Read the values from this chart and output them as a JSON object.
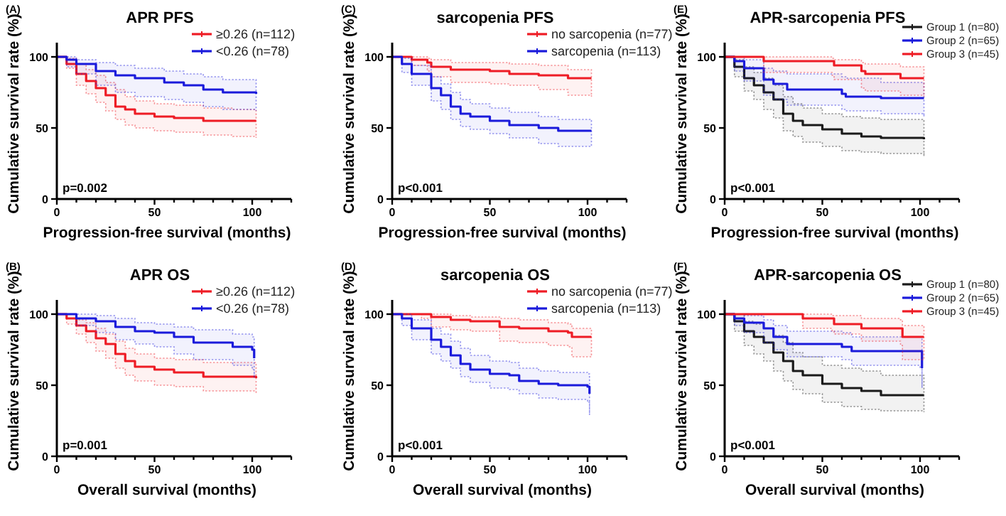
{
  "chart_data": [
    {
      "type": "step",
      "title": "APR PFS",
      "xlabel": "Progression-free survival (months)",
      "ylabel": "Cumulative survival rate (%)",
      "xlim": [
        0,
        120
      ],
      "ylim": [
        0,
        110
      ],
      "xticks": [
        0,
        {
          "value": 10,
          "label": null
        },
        {
          "value": 20,
          "label": null
        },
        {
          "value": 30,
          "label": null
        },
        {
          "value": 40,
          "label": null
        },
        50,
        {
          "value": 60,
          "label": null
        },
        {
          "value": 70,
          "label": null
        },
        {
          "value": 80,
          "label": null
        },
        {
          "value": 90,
          "label": null
        },
        100,
        {
          "value": 110,
          "label": null
        },
        {
          "value": 120,
          "label": null
        }
      ],
      "yticks": [
        0,
        50,
        100
      ],
      "legend": "top right",
      "annotations": [
        "(A)",
        "p=0.002"
      ],
      "series": [
        {
          "name": "≥0.26 (n=112)",
          "color": "#ee1c25",
          "x": [
            0,
            5,
            10,
            15,
            20,
            25,
            30,
            35,
            40,
            50,
            60,
            75,
            90,
            102
          ],
          "values": [
            100,
            95,
            88,
            83,
            78,
            73,
            65,
            63,
            60,
            58,
            57,
            55,
            55,
            55
          ],
          "lower": [
            100,
            92,
            80,
            74,
            68,
            62,
            56,
            52,
            50,
            48,
            47,
            45,
            44,
            43
          ],
          "upper": [
            100,
            99,
            95,
            91,
            87,
            82,
            77,
            72,
            69,
            67,
            66,
            64,
            63,
            63
          ]
        },
        {
          "name": "<0.26 (n=78)",
          "color": "#1a1adb",
          "x": [
            0,
            5,
            10,
            20,
            30,
            40,
            55,
            65,
            75,
            85,
            102
          ],
          "values": [
            100,
            98,
            95,
            90,
            87,
            85,
            82,
            80,
            77,
            75,
            74
          ],
          "lower": [
            100,
            93,
            88,
            80,
            75,
            72,
            70,
            68,
            65,
            63,
            62
          ],
          "upper": [
            100,
            100,
            98,
            96,
            94,
            92,
            90,
            88,
            86,
            84,
            83
          ]
        }
      ]
    },
    {
      "type": "step",
      "title": "sarcopenia PFS",
      "xlabel": "Progression-free survival (months)",
      "ylabel": "Cumulative survival rate (%)",
      "xlim": [
        0,
        120
      ],
      "ylim": [
        0,
        110
      ],
      "xticks": [
        0,
        {
          "value": 10,
          "label": null
        },
        {
          "value": 20,
          "label": null
        },
        {
          "value": 30,
          "label": null
        },
        {
          "value": 40,
          "label": null
        },
        50,
        {
          "value": 60,
          "label": null
        },
        {
          "value": 70,
          "label": null
        },
        {
          "value": 80,
          "label": null
        },
        {
          "value": 90,
          "label": null
        },
        100,
        {
          "value": 110,
          "label": null
        },
        {
          "value": 120,
          "label": null
        }
      ],
      "yticks": [
        0,
        50,
        100
      ],
      "legend": "top right",
      "annotations": [
        "(C)",
        "p<0.001"
      ],
      "series": [
        {
          "name": "no sarcopenia (n=77)",
          "color": "#ee1c25",
          "x": [
            0,
            8,
            10,
            18,
            20,
            30,
            50,
            60,
            75,
            90,
            102
          ],
          "values": [
            100,
            100,
            98,
            96,
            93,
            91,
            90,
            88,
            87,
            85,
            85
          ],
          "lower": [
            100,
            100,
            94,
            90,
            86,
            82,
            81,
            80,
            77,
            73,
            72
          ],
          "upper": [
            100,
            100,
            100,
            99,
            98,
            96,
            96,
            95,
            94,
            91,
            91
          ]
        },
        {
          "name": "sarcopenia (n=113)",
          "color": "#1a1adb",
          "x": [
            0,
            5,
            10,
            20,
            25,
            30,
            35,
            40,
            50,
            60,
            75,
            85,
            102
          ],
          "values": [
            100,
            95,
            88,
            78,
            73,
            65,
            60,
            58,
            55,
            52,
            50,
            48,
            48
          ],
          "lower": [
            100,
            89,
            80,
            69,
            63,
            56,
            51,
            49,
            46,
            43,
            39,
            37,
            37
          ],
          "upper": [
            100,
            99,
            94,
            86,
            81,
            75,
            70,
            67,
            64,
            61,
            58,
            56,
            56
          ]
        }
      ]
    },
    {
      "type": "step",
      "title": "APR-sarcopenia PFS",
      "xlabel": "Progression-free survival (months)",
      "ylabel": "Cumulative survival rate (%)",
      "xlim": [
        0,
        120
      ],
      "ylim": [
        0,
        110
      ],
      "xticks": [
        0,
        {
          "value": 10,
          "label": null
        },
        {
          "value": 20,
          "label": null
        },
        {
          "value": 30,
          "label": null
        },
        {
          "value": 40,
          "label": null
        },
        50,
        {
          "value": 60,
          "label": null
        },
        {
          "value": 70,
          "label": null
        },
        {
          "value": 80,
          "label": null
        },
        {
          "value": 90,
          "label": null
        },
        100,
        {
          "value": 110,
          "label": null
        },
        {
          "value": 120,
          "label": null
        }
      ],
      "yticks": [
        0,
        50,
        100
      ],
      "legend": "top right",
      "annotations": [
        "(E)",
        "p<0.001"
      ],
      "series": [
        {
          "name": "Group 1 (n=80)",
          "color": "#1a1a1a",
          "x": [
            0,
            5,
            10,
            15,
            20,
            25,
            30,
            35,
            40,
            50,
            60,
            70,
            80,
            102
          ],
          "values": [
            100,
            93,
            85,
            80,
            75,
            70,
            60,
            55,
            52,
            49,
            46,
            44,
            43,
            42
          ],
          "lower": [
            100,
            86,
            76,
            70,
            63,
            57,
            48,
            44,
            40,
            37,
            34,
            33,
            32,
            30
          ],
          "upper": [
            100,
            98,
            93,
            89,
            85,
            80,
            72,
            67,
            64,
            60,
            58,
            57,
            56,
            54
          ]
        },
        {
          "name": "Group 2 (n=65)",
          "color": "#1a1adb",
          "x": [
            0,
            5,
            10,
            20,
            25,
            32,
            60,
            62,
            80,
            102
          ],
          "values": [
            100,
            97,
            92,
            84,
            81,
            77,
            74,
            72,
            71,
            71
          ],
          "lower": [
            100,
            90,
            83,
            73,
            70,
            66,
            63,
            62,
            60,
            58
          ],
          "upper": [
            100,
            100,
            98,
            92,
            90,
            88,
            86,
            85,
            82,
            80
          ]
        },
        {
          "name": "Group 3 (n=45)",
          "color": "#ee1c25",
          "x": [
            0,
            18,
            20,
            55,
            56,
            70,
            72,
            90,
            102
          ],
          "values": [
            100,
            100,
            97,
            97,
            94,
            90,
            88,
            85,
            85
          ],
          "lower": [
            100,
            100,
            89,
            87,
            84,
            78,
            76,
            73,
            72
          ],
          "upper": [
            100,
            100,
            100,
            99,
            98,
            96,
            95,
            93,
            92
          ]
        }
      ]
    },
    {
      "type": "step",
      "title": "APR OS",
      "xlabel": "Overall survival (months)",
      "ylabel": "Cumulative survival rate (%)",
      "xlim": [
        0,
        120
      ],
      "ylim": [
        0,
        110
      ],
      "xticks": [
        0,
        {
          "value": 10,
          "label": null
        },
        {
          "value": 20,
          "label": null
        },
        {
          "value": 30,
          "label": null
        },
        {
          "value": 40,
          "label": null
        },
        50,
        {
          "value": 60,
          "label": null
        },
        {
          "value": 70,
          "label": null
        },
        {
          "value": 80,
          "label": null
        },
        {
          "value": 90,
          "label": null
        },
        100,
        {
          "value": 110,
          "label": null
        },
        {
          "value": 120,
          "label": null
        }
      ],
      "yticks": [
        0,
        50,
        100
      ],
      "legend": "top right",
      "annotations": [
        "(B)",
        "p=0.001"
      ],
      "series": [
        {
          "name": "≥0.26 (n=112)",
          "color": "#ee1c25",
          "x": [
            0,
            5,
            10,
            15,
            20,
            25,
            30,
            35,
            40,
            50,
            60,
            75,
            102
          ],
          "values": [
            100,
            97,
            92,
            88,
            83,
            79,
            72,
            67,
            63,
            61,
            59,
            56,
            55
          ],
          "lower": [
            100,
            93,
            86,
            80,
            74,
            69,
            62,
            57,
            53,
            50,
            49,
            46,
            44
          ],
          "upper": [
            100,
            100,
            96,
            94,
            90,
            86,
            81,
            76,
            72,
            69,
            68,
            66,
            63
          ]
        },
        {
          "name": "<0.26 (n=78)",
          "color": "#1a1adb",
          "x": [
            0,
            5,
            10,
            20,
            30,
            40,
            50,
            60,
            70,
            90,
            100,
            101
          ],
          "values": [
            100,
            100,
            97,
            95,
            91,
            88,
            87,
            84,
            80,
            77,
            75,
            69
          ],
          "lower": [
            100,
            100,
            92,
            87,
            82,
            79,
            77,
            72,
            68,
            64,
            61,
            55
          ],
          "upper": [
            100,
            100,
            100,
            99,
            97,
            94,
            93,
            91,
            89,
            86,
            84,
            80
          ]
        }
      ]
    },
    {
      "type": "step",
      "title": "sarcopenia OS",
      "xlabel": "Overall survival (months)",
      "ylabel": "Cumulative survival rate (%)",
      "xlim": [
        0,
        120
      ],
      "ylim": [
        0,
        110
      ],
      "xticks": [
        0,
        {
          "value": 10,
          "label": null
        },
        {
          "value": 20,
          "label": null
        },
        {
          "value": 30,
          "label": null
        },
        {
          "value": 40,
          "label": null
        },
        50,
        {
          "value": 60,
          "label": null
        },
        {
          "value": 70,
          "label": null
        },
        {
          "value": 80,
          "label": null
        },
        {
          "value": 90,
          "label": null
        },
        100,
        {
          "value": 110,
          "label": null
        },
        {
          "value": 120,
          "label": null
        }
      ],
      "yticks": [
        0,
        50,
        100
      ],
      "legend": "top right",
      "annotations": [
        "(D)",
        "p<0.001"
      ],
      "series": [
        {
          "name": "no sarcopenia (n=77)",
          "color": "#ee1c25",
          "x": [
            0,
            15,
            20,
            30,
            40,
            55,
            65,
            80,
            90,
            92,
            102
          ],
          "values": [
            100,
            100,
            98,
            96,
            95,
            91,
            90,
            88,
            87,
            84,
            84
          ],
          "lower": [
            100,
            97,
            91,
            89,
            88,
            81,
            80,
            78,
            77,
            70,
            70
          ],
          "upper": [
            100,
            100,
            100,
            99,
            98,
            97,
            96,
            94,
            93,
            90,
            90
          ]
        },
        {
          "name": "sarcopenia (n=113)",
          "color": "#1a1adb",
          "x": [
            0,
            5,
            10,
            20,
            25,
            30,
            35,
            40,
            50,
            60,
            65,
            75,
            85,
            100,
            101
          ],
          "values": [
            100,
            97,
            90,
            82,
            77,
            71,
            65,
            61,
            58,
            57,
            53,
            51,
            50,
            49,
            44
          ],
          "lower": [
            100,
            92,
            82,
            72,
            67,
            62,
            56,
            52,
            48,
            47,
            44,
            41,
            40,
            38,
            29
          ],
          "upper": [
            100,
            100,
            96,
            90,
            86,
            81,
            76,
            71,
            67,
            66,
            62,
            60,
            59,
            58,
            56
          ]
        }
      ]
    },
    {
      "type": "step",
      "title": "APR-sarcopenia OS",
      "xlabel": "Overall survival (months)",
      "ylabel": "Cumulative survival rate (%)",
      "xlim": [
        0,
        120
      ],
      "ylim": [
        0,
        110
      ],
      "xticks": [
        0,
        {
          "value": 10,
          "label": null
        },
        {
          "value": 20,
          "label": null
        },
        {
          "value": 30,
          "label": null
        },
        {
          "value": 40,
          "label": null
        },
        50,
        {
          "value": 60,
          "label": null
        },
        {
          "value": 70,
          "label": null
        },
        {
          "value": 80,
          "label": null
        },
        {
          "value": 90,
          "label": null
        },
        100,
        {
          "value": 110,
          "label": null
        },
        {
          "value": 120,
          "label": null
        }
      ],
      "yticks": [
        0,
        50,
        100
      ],
      "legend": "top right",
      "annotations": [
        "(F)",
        "p<0.001"
      ],
      "series": [
        {
          "name": "Group 1 (n=80)",
          "color": "#1a1a1a",
          "x": [
            0,
            5,
            10,
            15,
            20,
            25,
            30,
            35,
            40,
            50,
            60,
            70,
            80,
            102
          ],
          "values": [
            100,
            95,
            88,
            84,
            80,
            73,
            67,
            60,
            57,
            51,
            48,
            46,
            43,
            43
          ],
          "lower": [
            100,
            88,
            78,
            72,
            67,
            60,
            53,
            47,
            44,
            38,
            35,
            33,
            32,
            31
          ],
          "upper": [
            100,
            100,
            95,
            93,
            90,
            85,
            80,
            73,
            70,
            64,
            62,
            60,
            57,
            56
          ]
        },
        {
          "name": "Group 2 (n=65)",
          "color": "#1a1adb",
          "x": [
            0,
            5,
            10,
            20,
            25,
            32,
            60,
            65,
            100,
            101
          ],
          "values": [
            100,
            97,
            94,
            90,
            84,
            79,
            77,
            74,
            74,
            62
          ],
          "lower": [
            100,
            92,
            87,
            80,
            75,
            70,
            68,
            64,
            62,
            48
          ],
          "upper": [
            100,
            100,
            99,
            96,
            92,
            88,
            87,
            84,
            84,
            76
          ]
        },
        {
          "name": "Group 3 (n=45)",
          "color": "#ee1c25",
          "x": [
            0,
            38,
            40,
            55,
            56,
            70,
            90,
            91,
            102
          ],
          "values": [
            100,
            100,
            97,
            97,
            93,
            90,
            90,
            84,
            84
          ],
          "lower": [
            100,
            100,
            90,
            88,
            86,
            81,
            78,
            68,
            68
          ],
          "upper": [
            100,
            100,
            100,
            99,
            99,
            97,
            96,
            92,
            92
          ]
        }
      ]
    }
  ]
}
